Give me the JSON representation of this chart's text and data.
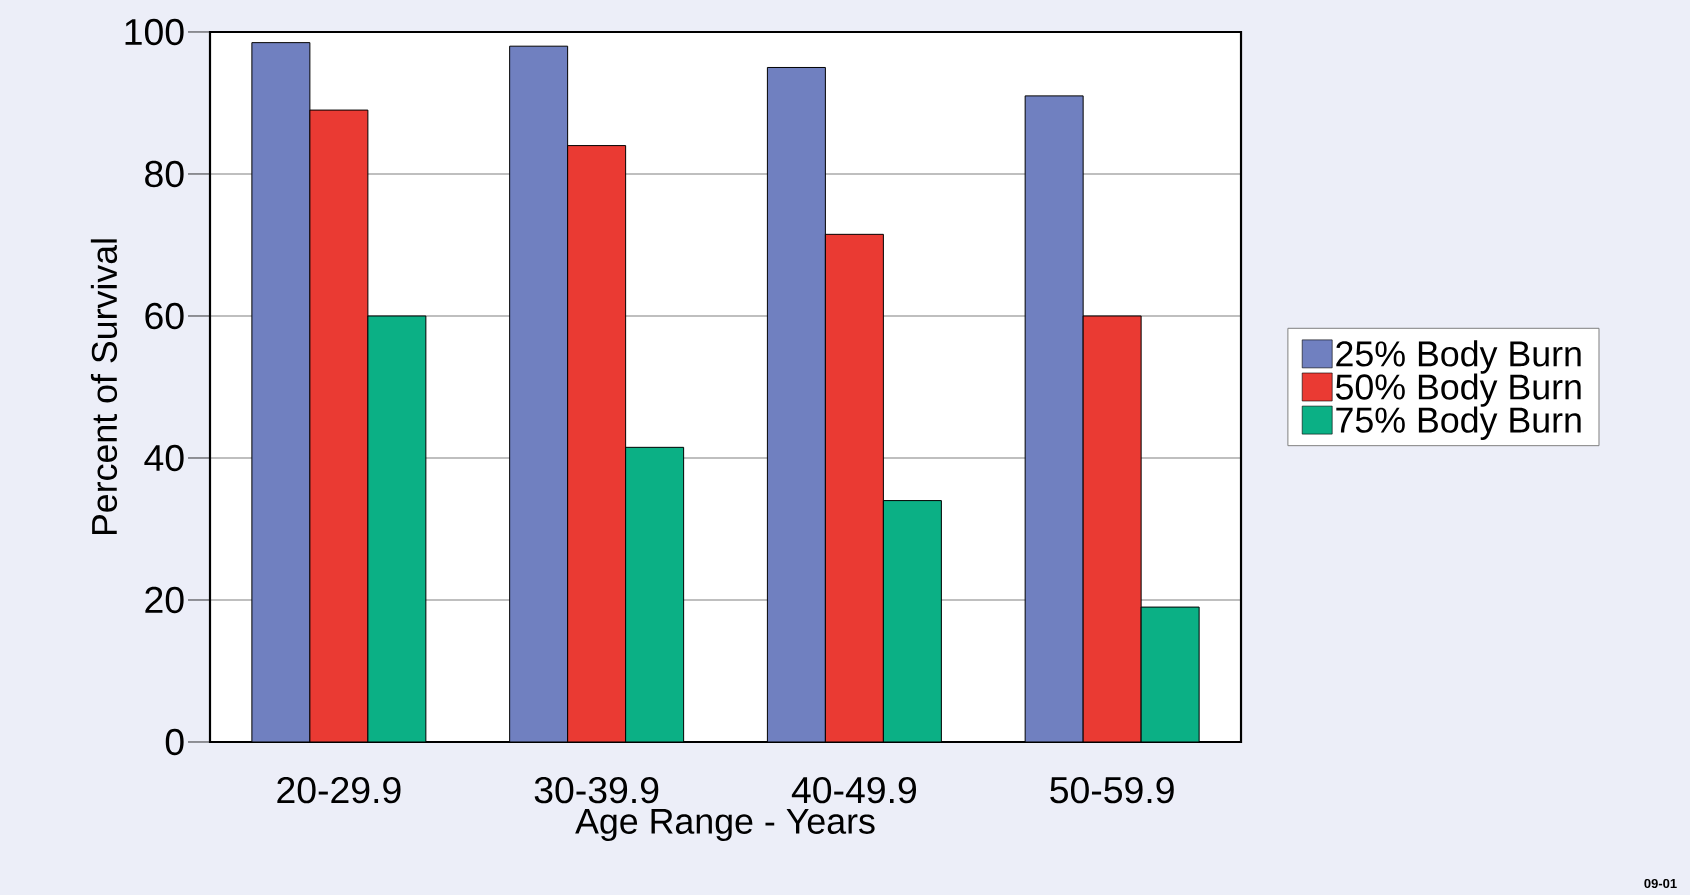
{
  "chart_data": {
    "type": "bar",
    "xlabel": "Age Range - Years",
    "ylabel": "Percent of Survival",
    "categories": [
      "20-29.9",
      "30-39.9",
      "40-49.9",
      "50-59.9"
    ],
    "series": [
      {
        "name": "25% Body Burn",
        "color": "#7080c0",
        "values": [
          98.5,
          98,
          95,
          91
        ]
      },
      {
        "name": "50% Body Burn",
        "color": "#ea3a33",
        "values": [
          89,
          84,
          71.5,
          60
        ]
      },
      {
        "name": "75% Body Burn",
        "color": "#0bb085",
        "values": [
          60,
          41.5,
          34,
          19
        ]
      }
    ],
    "ylim": [
      0,
      100
    ],
    "yticks": [
      0,
      20,
      40,
      60,
      80,
      100
    ],
    "grid": "y",
    "legend": "right",
    "annotations": [
      "09-01"
    ]
  }
}
